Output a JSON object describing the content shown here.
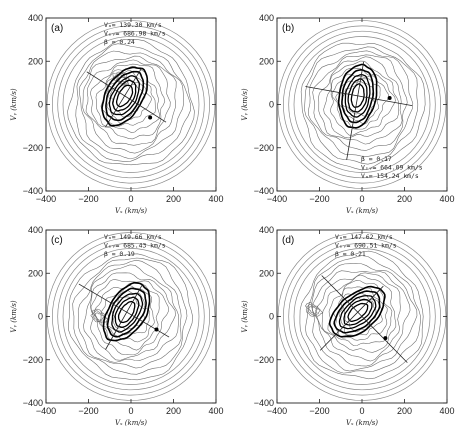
{
  "figure": {
    "panels": [
      {
        "label": "(a)",
        "annotations": [
          "Vₐ= 139.30 km/s",
          "Vₛᵥ= 686.98 km/s",
          "β = 0.24"
        ],
        "beam_angle_deg": 148,
        "beam_extent": [
          -230,
          210
        ],
        "perp_extent": [
          -150,
          170
        ],
        "dot": [
          90,
          -60
        ],
        "core": [
          -30,
          40
        ],
        "core_tilt_deg": 60,
        "bump": [
          -45,
          120
        ],
        "ann_pos": "top"
      },
      {
        "label": "(b)",
        "annotations": [
          "β = 0.17",
          "Vₛᵥ= 664.09 km/s",
          "Vₐ= 154.24 km/s"
        ],
        "beam_angle_deg": 170,
        "beam_extent": [
          -260,
          250
        ],
        "perp_extent": [
          -160,
          300
        ],
        "dot": [
          130,
          30
        ],
        "core": [
          -20,
          40
        ],
        "core_tilt_deg": 80,
        "bump": null,
        "ann_pos": "bottom"
      },
      {
        "label": "(c)",
        "annotations": [
          "Vₐ= 149.66 km/s",
          "Vₛᵥ= 685.43 km/s",
          "β = 0.19"
        ],
        "beam_angle_deg": 150,
        "beam_extent": [
          -230,
          260
        ],
        "perp_extent": [
          -150,
          200
        ],
        "dot": [
          120,
          -60
        ],
        "core": [
          -20,
          20
        ],
        "core_tilt_deg": 58,
        "bump": [
          -150,
          0
        ],
        "ann_pos": "top"
      },
      {
        "label": "(d)",
        "annotations": [
          "Vₐ= 147.62 km/s",
          "Vₛᵥ= 690.51 km/s",
          "β = 0.21"
        ],
        "beam_angle_deg": 135,
        "beam_extent": [
          -330,
          240
        ],
        "perp_extent": [
          -170,
          250
        ],
        "dot": [
          110,
          -100
        ],
        "core": [
          -20,
          20
        ],
        "core_tilt_deg": 40,
        "bump": [
          -230,
          30
        ],
        "ann_pos": "top"
      }
    ],
    "axes": {
      "xlabel": "Vₓ (km/s)",
      "ylabel": "Vᵧ (km/s)",
      "xlim": [
        -400,
        400
      ],
      "ylim": [
        -400,
        400
      ],
      "xticks": [
        -400,
        -200,
        0,
        200,
        400
      ],
      "yticks": [
        -400,
        -200,
        0,
        200,
        400
      ],
      "xtick_labels": [
        "−400",
        "−200",
        "0",
        "200",
        "400"
      ],
      "ytick_labels": [
        "−400",
        "−200",
        "0",
        "200",
        "400"
      ]
    },
    "colors": {
      "axes": "#222222",
      "contour": "#6f6f6f",
      "core_contour": "#000000",
      "beam": "#222222"
    }
  }
}
